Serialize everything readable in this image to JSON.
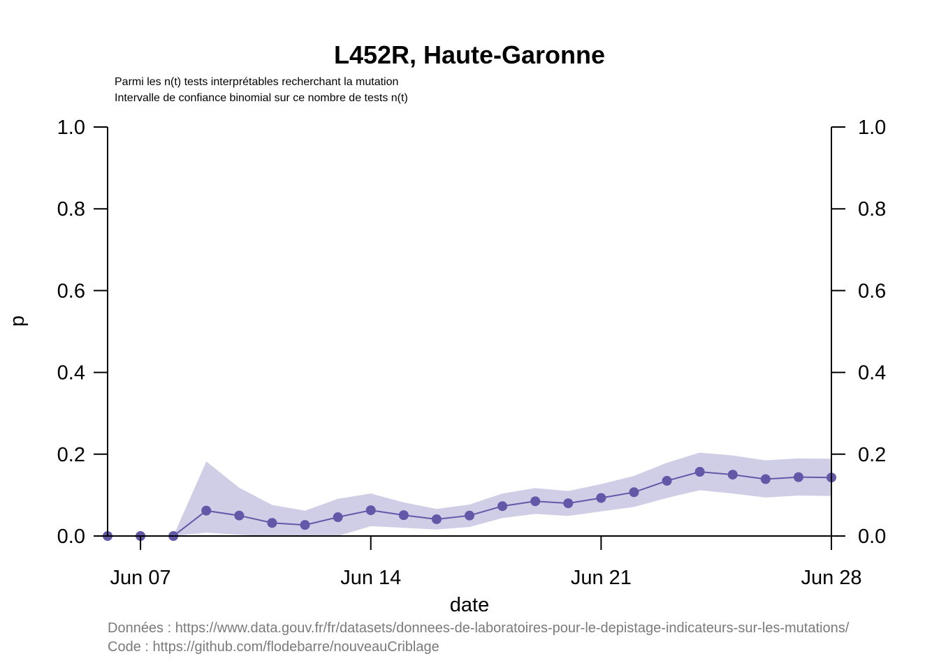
{
  "chart_data": {
    "type": "line",
    "title": "L452R, Haute-Garonne",
    "subtitle_lines": [
      "Parmi les n(t) tests interprétables recherchant la mutation",
      "Intervalle de confiance binomial sur ce nombre de tests n(t)"
    ],
    "xlabel": "date",
    "ylabel": "p",
    "x_ticks": [
      "Jun 07",
      "Jun 14",
      "Jun 21",
      "Jun 28"
    ],
    "x_tick_days": [
      7,
      14,
      21,
      28
    ],
    "xlim": [
      6,
      28
    ],
    "ylim": [
      0,
      1
    ],
    "y_ticks": [
      "0.0",
      "0.2",
      "0.4",
      "0.6",
      "0.8",
      "1.0"
    ],
    "y_tick_values": [
      0,
      0.2,
      0.4,
      0.6,
      0.8,
      1.0
    ],
    "right_axis": true,
    "grid": false,
    "colors": {
      "line": "#6159a8",
      "band": "#d0cde6"
    },
    "series": [
      {
        "x_days": [
          6,
          7,
          8,
          9,
          10,
          11,
          12,
          13,
          14,
          15,
          16,
          17,
          18,
          19,
          20,
          21,
          22,
          23,
          24,
          25,
          26,
          27,
          28
        ],
        "values": [
          0.0,
          0.0,
          0.0,
          0.062,
          0.05,
          0.032,
          0.027,
          0.046,
          0.063,
          0.051,
          0.041,
          0.05,
          0.073,
          0.085,
          0.08,
          0.093,
          0.107,
          0.135,
          0.157,
          0.15,
          0.139,
          0.144,
          0.143
        ],
        "ci_low": [
          0.0,
          0.0,
          0.0,
          0.008,
          0.003,
          0.0,
          0.0,
          0.0,
          0.024,
          0.02,
          0.016,
          0.022,
          0.044,
          0.054,
          0.049,
          0.06,
          0.071,
          0.093,
          0.112,
          0.104,
          0.094,
          0.099,
          0.098
        ],
        "ci_high": [
          0.0,
          0.0,
          0.0,
          0.182,
          0.118,
          0.076,
          0.062,
          0.091,
          0.104,
          0.082,
          0.066,
          0.077,
          0.104,
          0.117,
          0.11,
          0.127,
          0.147,
          0.179,
          0.204,
          0.197,
          0.185,
          0.19,
          0.189
        ]
      }
    ]
  },
  "footer": {
    "data_source": "Données : https://www.data.gouv.fr/fr/datasets/donnees-de-laboratoires-pour-le-depistage-indicateurs-sur-les-mutations/",
    "code_source": "Code : https://github.com/flodebarre/nouveauCriblage"
  }
}
